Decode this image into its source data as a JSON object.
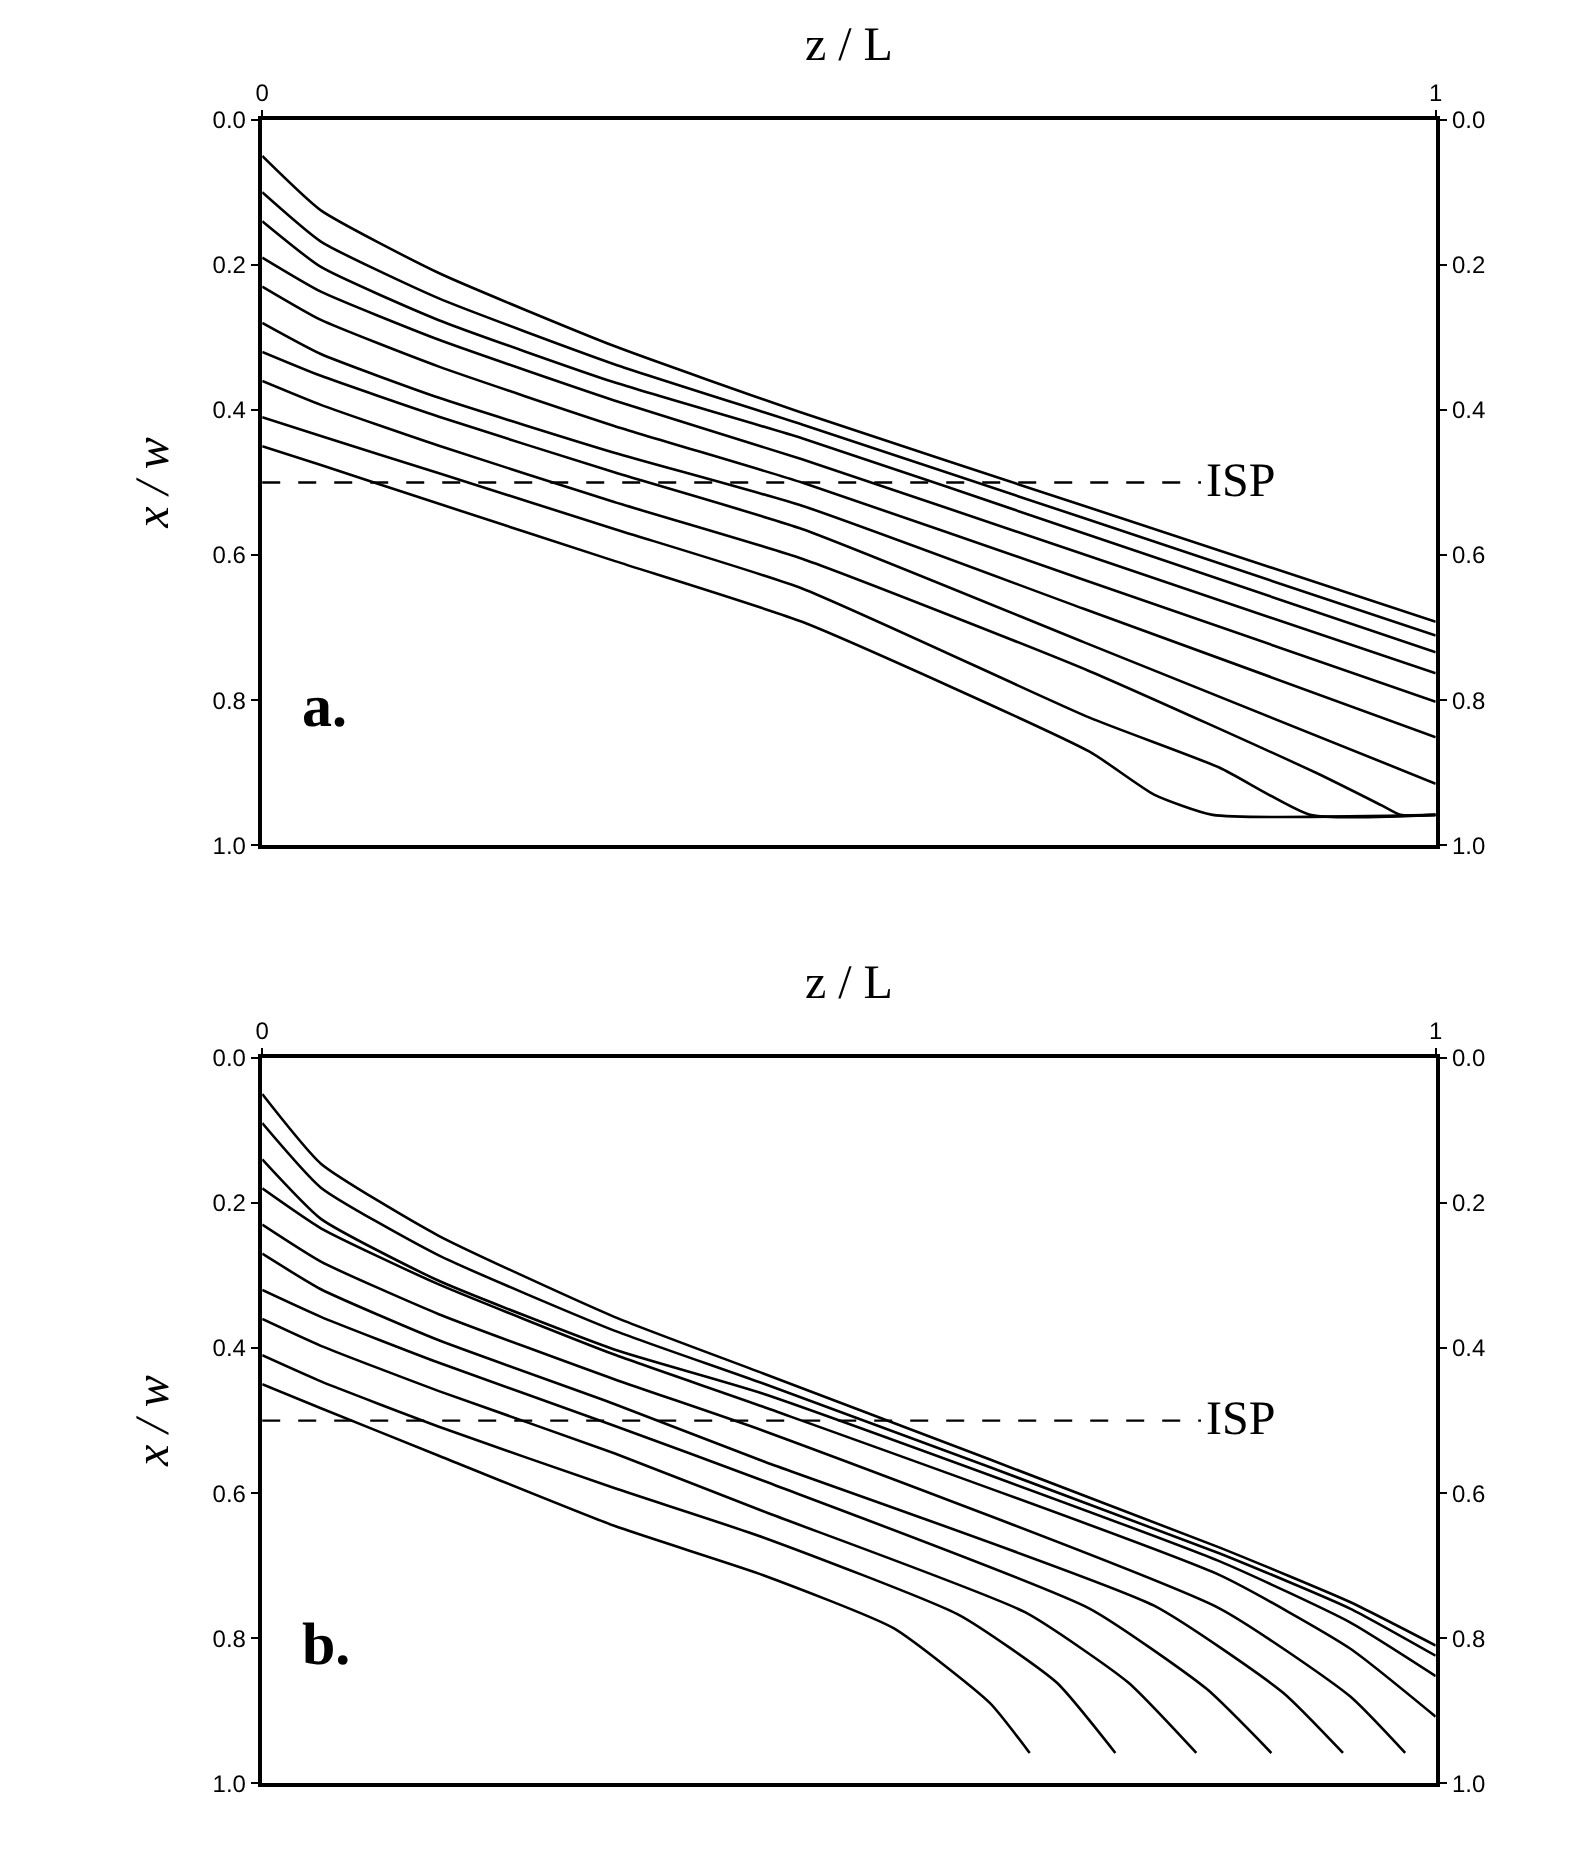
{
  "chart_data": [
    {
      "type": "line",
      "xlabel": "z / L",
      "ylabel": "x / w",
      "annotations": [
        "a."
      ],
      "xlim": [
        0,
        1
      ],
      "xticks": [
        0,
        1
      ],
      "ylim": [
        1,
        0
      ],
      "yticks": [
        {
          "value": 0,
          "label": "0.0"
        },
        {
          "value": 0.2,
          "label": "0.2"
        },
        {
          "value": 0.4,
          "label": "0.4"
        },
        {
          "value": 0.6,
          "label": "0.6"
        },
        {
          "value": 0.8,
          "label": "0.8"
        },
        {
          "value": 1,
          "label": "1.0"
        }
      ],
      "y2lim": [
        1,
        0
      ],
      "y2ticks": [
        {
          "value": 0,
          "label": "0.0"
        },
        {
          "value": 0.2,
          "label": "0.2"
        },
        {
          "value": 0.4,
          "label": "0.4"
        },
        {
          "value": 0.6,
          "label": "0.6"
        },
        {
          "value": 0.8,
          "label": "0.8"
        },
        {
          "value": 1,
          "label": "1.0"
        }
      ],
      "ref_lines": [
        {
          "axis": "y",
          "value": 0.5,
          "label": "ISP",
          "color": "#000000",
          "line_style": "dashed"
        }
      ],
      "series": [
        {
          "color": "#000000",
          "x": [
            0,
            0.05,
            0.15,
            0.3,
            0.46,
            0.7,
            1
          ],
          "values": [
            0.05,
            0.125,
            0.211,
            0.312,
            0.404,
            0.532,
            0.692
          ]
        },
        {
          "color": "#000000",
          "x": [
            0,
            0.05,
            0.15,
            0.3,
            0.46,
            0.7,
            1
          ],
          "values": [
            0.1,
            0.168,
            0.246,
            0.337,
            0.42,
            0.549,
            0.711
          ]
        },
        {
          "color": "#000000",
          "x": [
            0,
            0.05,
            0.15,
            0.3,
            0.46,
            0.7,
            1
          ],
          "values": [
            0.14,
            0.203,
            0.276,
            0.362,
            0.439,
            0.57,
            0.734
          ]
        },
        {
          "color": "#000000",
          "x": [
            0,
            0.05,
            0.15,
            0.3,
            0.46,
            0.7,
            1
          ],
          "values": [
            0.19,
            0.237,
            0.303,
            0.387,
            0.468,
            0.599,
            0.763
          ]
        },
        {
          "color": "#000000",
          "x": [
            0,
            0.05,
            0.15,
            0.3,
            0.46,
            0.7,
            1
          ],
          "values": [
            0.23,
            0.276,
            0.34,
            0.422,
            0.5,
            0.634,
            0.802
          ]
        },
        {
          "color": "#000000",
          "x": [
            0,
            0.05,
            0.15,
            0.3,
            0.46,
            0.7,
            1
          ],
          "values": [
            0.28,
            0.323,
            0.383,
            0.459,
            0.532,
            0.674,
            0.851
          ]
        },
        {
          "color": "#000000",
          "x": [
            0,
            0.05,
            0.15,
            0.3,
            0.46,
            0.7,
            1
          ],
          "values": [
            0.32,
            0.353,
            0.409,
            0.486,
            0.564,
            0.72,
            0.915
          ]
        },
        {
          "color": "#000000",
          "x": [
            0,
            0.05,
            0.15,
            0.3,
            0.46,
            0.705,
            0.898,
            0.954,
            0.97,
            1
          ],
          "values": [
            0.36,
            0.393,
            0.449,
            0.527,
            0.605,
            0.76,
            0.9,
            0.945,
            0.958,
            0.958
          ]
        },
        {
          "color": "#000000",
          "x": [
            0,
            0.05,
            0.15,
            0.3,
            0.46,
            0.705,
            0.816,
            0.893,
            1
          ],
          "values": [
            0.41,
            0.436,
            0.487,
            0.564,
            0.646,
            0.824,
            0.893,
            0.958,
            0.958
          ]
        },
        {
          "color": "#000000",
          "x": [
            0,
            0.05,
            0.15,
            0.3,
            0.46,
            0.705,
            0.76,
            0.81,
            1
          ],
          "values": [
            0.45,
            0.476,
            0.529,
            0.608,
            0.692,
            0.871,
            0.93,
            0.958,
            0.958
          ]
        }
      ]
    },
    {
      "type": "line",
      "xlabel": "z / L",
      "ylabel": "x / w",
      "annotations": [
        "b."
      ],
      "xlim": [
        0,
        1
      ],
      "xticks": [
        0,
        1
      ],
      "ylim": [
        1,
        0
      ],
      "yticks": [
        {
          "value": 0,
          "label": "0.0"
        },
        {
          "value": 0.2,
          "label": "0.2"
        },
        {
          "value": 0.4,
          "label": "0.4"
        },
        {
          "value": 0.6,
          "label": "0.6"
        },
        {
          "value": 0.8,
          "label": "0.8"
        },
        {
          "value": 1,
          "label": "1.0"
        }
      ],
      "y2lim": [
        1,
        0
      ],
      "y2ticks": [
        {
          "value": 0,
          "label": "0.0"
        },
        {
          "value": 0.2,
          "label": "0.2"
        },
        {
          "value": 0.4,
          "label": "0.4"
        },
        {
          "value": 0.6,
          "label": "0.6"
        },
        {
          "value": 0.8,
          "label": "0.8"
        },
        {
          "value": 1,
          "label": "1.0"
        }
      ],
      "ref_lines": [
        {
          "axis": "y",
          "value": 0.5,
          "label": "ISP",
          "color": "#000000",
          "line_style": "dashed"
        }
      ],
      "series": [
        {
          "color": "#000000",
          "x": [
            0,
            0.05,
            0.15,
            0.3,
            0.427,
            0.816,
            0.927,
            1
          ],
          "values": [
            0.05,
            0.146,
            0.245,
            0.357,
            0.435,
            0.675,
            0.75,
            0.81
          ]
        },
        {
          "color": "#000000",
          "x": [
            0,
            0.05,
            0.15,
            0.3,
            0.427,
            0.816,
            0.927,
            1
          ],
          "values": [
            0.09,
            0.179,
            0.272,
            0.376,
            0.449,
            0.683,
            0.759,
            0.824
          ]
        },
        {
          "color": "#000000",
          "x": [
            0,
            0.05,
            0.15,
            0.3,
            0.427,
            0.816,
            0.927,
            1
          ],
          "values": [
            0.14,
            0.222,
            0.307,
            0.402,
            0.463,
            0.694,
            0.778,
            0.852
          ]
        },
        {
          "color": "#000000",
          "x": [
            0,
            0.05,
            0.15,
            0.3,
            0.427,
            0.816,
            0.927,
            1
          ],
          "values": [
            0.18,
            0.235,
            0.312,
            0.409,
            0.481,
            0.713,
            0.814,
            0.908
          ]
        },
        {
          "color": "#000000",
          "x": [
            0,
            0.05,
            0.15,
            0.3,
            0.427,
            0.816,
            0.927,
            0.974
          ],
          "values": [
            0.23,
            0.281,
            0.353,
            0.443,
            0.514,
            0.759,
            0.88,
            0.958
          ]
        },
        {
          "color": "#000000",
          "x": [
            0,
            0.05,
            0.15,
            0.3,
            0.427,
            0.76,
            0.87,
            0.921
          ],
          "values": [
            0.27,
            0.319,
            0.389,
            0.477,
            0.556,
            0.755,
            0.875,
            0.958
          ]
        },
        {
          "color": "#000000",
          "x": [
            0,
            0.05,
            0.15,
            0.3,
            0.427,
            0.705,
            0.805,
            0.86
          ],
          "values": [
            0.32,
            0.357,
            0.42,
            0.507,
            0.583,
            0.759,
            0.87,
            0.958
          ]
        },
        {
          "color": "#000000",
          "x": [
            0,
            0.05,
            0.15,
            0.3,
            0.427,
            0.65,
            0.738,
            0.796
          ],
          "values": [
            0.36,
            0.397,
            0.459,
            0.545,
            0.625,
            0.764,
            0.861,
            0.958
          ]
        },
        {
          "color": "#000000",
          "x": [
            0,
            0.05,
            0.15,
            0.3,
            0.427,
            0.594,
            0.677,
            0.727
          ],
          "values": [
            0.41,
            0.446,
            0.508,
            0.593,
            0.661,
            0.768,
            0.861,
            0.958
          ]
        },
        {
          "color": "#000000",
          "x": [
            0,
            0.05,
            0.15,
            0.3,
            0.427,
            0.538,
            0.62,
            0.654
          ],
          "values": [
            0.45,
            0.483,
            0.548,
            0.645,
            0.713,
            0.786,
            0.889,
            0.958
          ]
        }
      ]
    }
  ]
}
